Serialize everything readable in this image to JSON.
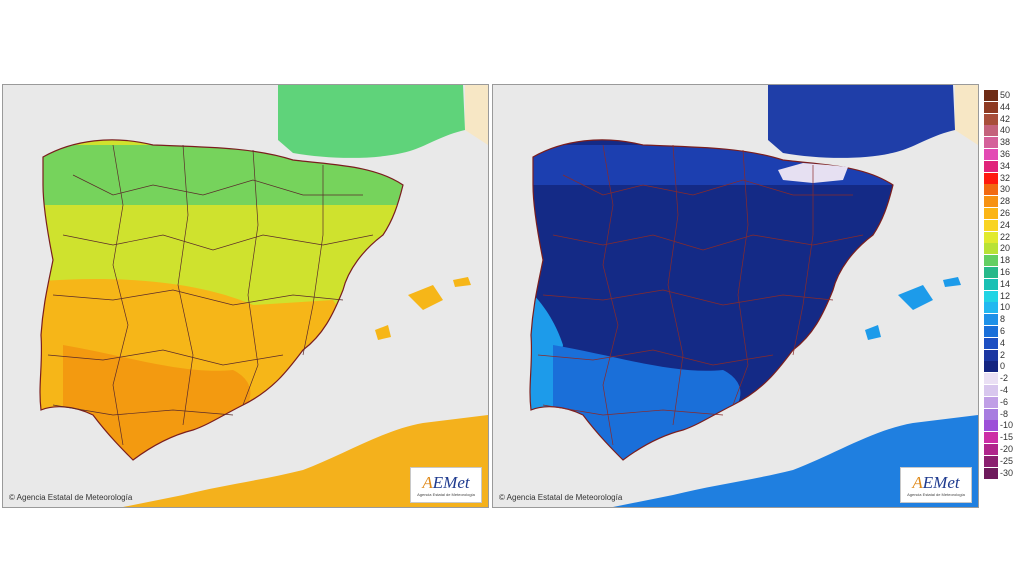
{
  "maps": [
    {
      "id": "max",
      "copyright": "© Agencia Estatal de Meteorología",
      "logo": {
        "word": "AEMet",
        "subtitle": "Agencia Estatal de Meteorología"
      },
      "field_colors": {
        "sea": "#e9e9e9",
        "land_outside": "#f7e7c5",
        "west": "#f6b618",
        "south": "#f39a10",
        "center": "#cfe22e",
        "north": "#76d35c",
        "france": "#5fd37a",
        "africa": "#f4b11c"
      }
    },
    {
      "id": "min",
      "copyright": "© Agencia Estatal de Meteorología",
      "logo": {
        "word": "AEMet",
        "subtitle": "Agencia Estatal de Meteorología"
      },
      "field_colors": {
        "sea": "#e9e9e9",
        "land_outside": "#f7e7c5",
        "west": "#1d9bea",
        "south": "#1a6fd9",
        "center": "#142a86",
        "north": "#1c3fb0",
        "france": "#1f3ea8",
        "africa": "#1f7fe0"
      }
    }
  ],
  "legend": {
    "entries": [
      {
        "label": "50",
        "color": "#6e2b15"
      },
      {
        "label": "44",
        "color": "#8e3a22"
      },
      {
        "label": "42",
        "color": "#a84e3a"
      },
      {
        "label": "40",
        "color": "#c4627c"
      },
      {
        "label": "38",
        "color": "#d4609a"
      },
      {
        "label": "36",
        "color": "#e34ab4"
      },
      {
        "label": "34",
        "color": "#e0247a"
      },
      {
        "label": "32",
        "color": "#ff1a10"
      },
      {
        "label": "30",
        "color": "#f26a12"
      },
      {
        "label": "28",
        "color": "#f79212"
      },
      {
        "label": "26",
        "color": "#fbb516"
      },
      {
        "label": "24",
        "color": "#f9d423"
      },
      {
        "label": "22",
        "color": "#e1ea2e"
      },
      {
        "label": "20",
        "color": "#b8e236"
      },
      {
        "label": "18",
        "color": "#63cf62"
      },
      {
        "label": "16",
        "color": "#27b98a"
      },
      {
        "label": "14",
        "color": "#19c0b4"
      },
      {
        "label": "12",
        "color": "#22d4e4"
      },
      {
        "label": "10",
        "color": "#22b8f0"
      },
      {
        "label": "8",
        "color": "#1e91e8"
      },
      {
        "label": "6",
        "color": "#1a6fd9"
      },
      {
        "label": "4",
        "color": "#1d4fc2"
      },
      {
        "label": "2",
        "color": "#1c37a2"
      },
      {
        "label": "0",
        "color": "#142581"
      },
      {
        "label": "-2",
        "color": "#eae0f4"
      },
      {
        "label": "-4",
        "color": "#d8c7ee"
      },
      {
        "label": "-6",
        "color": "#c09fe6"
      },
      {
        "label": "-8",
        "color": "#a77ce0"
      },
      {
        "label": "-10",
        "color": "#9c4fd8"
      },
      {
        "label": "-15",
        "color": "#cc2ea6"
      },
      {
        "label": "-20",
        "color": "#b0258c"
      },
      {
        "label": "-25",
        "color": "#8b1f70"
      },
      {
        "label": "-30",
        "color": "#6e1a5c"
      }
    ]
  }
}
